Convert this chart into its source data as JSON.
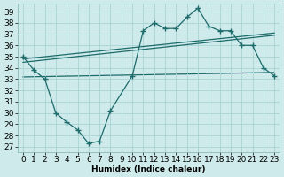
{
  "xlabel": "Humidex (Indice chaleur)",
  "bg_color": "#ceeaea",
  "line_color": "#1e6b6b",
  "grid_color": "#aad4d4",
  "xlim": [
    -0.5,
    23.5
  ],
  "ylim": [
    26.5,
    39.7
  ],
  "xticks": [
    0,
    1,
    2,
    3,
    4,
    5,
    6,
    7,
    8,
    9,
    10,
    11,
    12,
    13,
    14,
    15,
    16,
    17,
    18,
    19,
    20,
    21,
    22,
    23
  ],
  "yticks": [
    27,
    28,
    29,
    30,
    31,
    32,
    33,
    34,
    35,
    36,
    37,
    38,
    39
  ],
  "main_x": [
    0,
    1,
    2,
    3,
    4,
    5,
    6,
    7,
    8,
    10,
    11,
    12,
    13,
    14,
    15,
    16,
    17,
    18,
    19,
    20,
    21,
    22,
    23
  ],
  "main_y": [
    35.0,
    33.8,
    33.0,
    30.0,
    29.2,
    28.5,
    27.3,
    27.5,
    30.2,
    33.3,
    37.3,
    38.0,
    37.5,
    37.5,
    38.5,
    39.3,
    37.7,
    37.3,
    37.3,
    36.0,
    36.0,
    34.0,
    33.3
  ],
  "trend1_x": [
    0,
    23
  ],
  "trend1_y": [
    34.8,
    37.1
  ],
  "trend2_x": [
    0,
    23
  ],
  "trend2_y": [
    34.5,
    36.9
  ],
  "trend3_x": [
    0,
    23
  ],
  "trend3_y": [
    33.2,
    33.6
  ],
  "font_size": 6.5,
  "marker_size": 2.5,
  "lw": 0.9
}
